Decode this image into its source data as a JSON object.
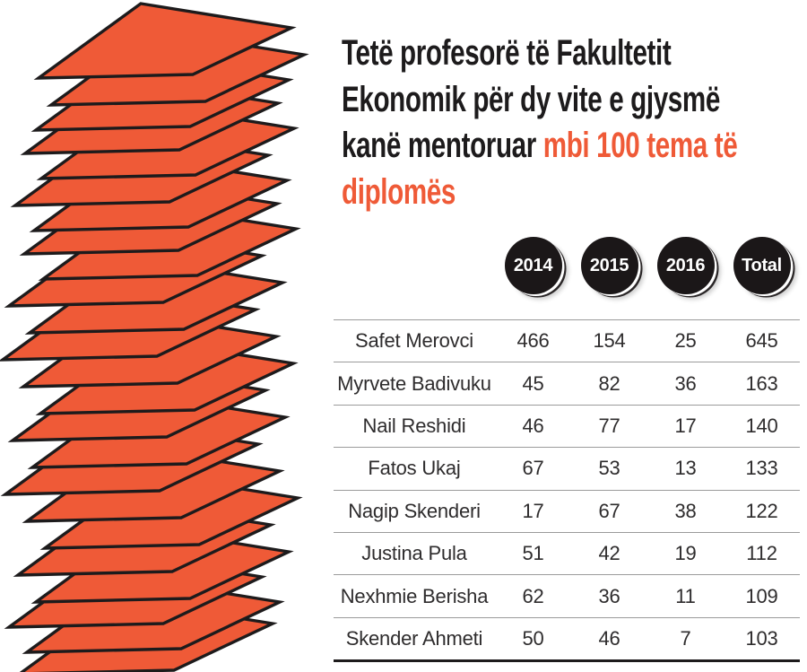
{
  "title": {
    "text_black": "Tetë profesorë të Fakultetit\nEkonomik për dy vite e gjysmë\nkanë mentoruar ",
    "text_orange": "mbi 100 tema të\ndiplomës"
  },
  "colors": {
    "accent_orange": "#EF5A37",
    "ink_black": "#1D1B1C",
    "divider_gray": "#9B9B9B",
    "badge_black": "#1B1718",
    "table_text": "#2E2C2D"
  },
  "illustration": {
    "name": "stack-of-diploma-papers",
    "sheet_count": 24,
    "sheet_color": "#EF5A37",
    "outline_color": "#1D1B1C"
  },
  "chart_data": {
    "type": "table",
    "title": "Tetë profesorë të Fakultetit Ekonomik për dy vite e gjysmë kanë mentoruar mbi 100 tema të diplomës",
    "columns": [
      "2014",
      "2015",
      "2016",
      "Total"
    ],
    "rows": [
      {
        "name": "Safet Merovci",
        "values": [
          466,
          154,
          25,
          645
        ]
      },
      {
        "name": "Myrvete Badivuku",
        "values": [
          45,
          82,
          36,
          163
        ]
      },
      {
        "name": "Nail Reshidi",
        "values": [
          46,
          77,
          17,
          140
        ]
      },
      {
        "name": "Fatos Ukaj",
        "values": [
          67,
          53,
          13,
          133
        ]
      },
      {
        "name": "Nagip Skenderi",
        "values": [
          17,
          67,
          38,
          122
        ]
      },
      {
        "name": "Justina Pula",
        "values": [
          51,
          42,
          19,
          112
        ]
      },
      {
        "name": "Nexhmie Berisha",
        "values": [
          62,
          36,
          11,
          109
        ]
      },
      {
        "name": "Skender Ahmeti",
        "values": [
          50,
          46,
          7,
          103
        ]
      }
    ]
  }
}
